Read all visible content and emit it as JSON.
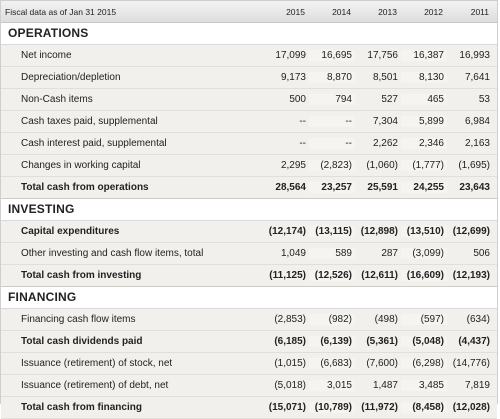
{
  "header": {
    "label": "Fiscal data as of Jan 31 2015",
    "years": [
      "2015",
      "2014",
      "2013",
      "2012",
      "2011"
    ]
  },
  "sections": {
    "operations": {
      "title": "OPERATIONS",
      "rows": [
        {
          "label": "Net income",
          "values": [
            "17,099",
            "16,695",
            "17,756",
            "16,387",
            "16,993"
          ]
        },
        {
          "label": "Depreciation/depletion",
          "values": [
            "9,173",
            "8,870",
            "8,501",
            "8,130",
            "7,641"
          ]
        },
        {
          "label": "Non-Cash items",
          "values": [
            "500",
            "794",
            "527",
            "465",
            "53"
          ]
        },
        {
          "label": "Cash taxes paid, supplemental",
          "values": [
            "--",
            "--",
            "7,304",
            "5,899",
            "6,984"
          ]
        },
        {
          "label": "Cash interest paid, supplemental",
          "values": [
            "--",
            "--",
            "2,262",
            "2,346",
            "2,163"
          ]
        },
        {
          "label": "Changes in working capital",
          "values": [
            "2,295",
            "(2,823)",
            "(1,060)",
            "(1,777)",
            "(1,695)"
          ]
        },
        {
          "label": "Total cash from operations",
          "values": [
            "28,564",
            "23,257",
            "25,591",
            "24,255",
            "23,643"
          ]
        }
      ]
    },
    "investing": {
      "title": "INVESTING",
      "rows": [
        {
          "label": "Capital expenditures",
          "values": [
            "(12,174)",
            "(13,115)",
            "(12,898)",
            "(13,510)",
            "(12,699)"
          ]
        },
        {
          "label": "Other investing and cash flow items, total",
          "values": [
            "1,049",
            "589",
            "287",
            "(3,099)",
            "506"
          ]
        },
        {
          "label": "Total cash from investing",
          "values": [
            "(11,125)",
            "(12,526)",
            "(12,611)",
            "(16,609)",
            "(12,193)"
          ]
        }
      ]
    },
    "financing": {
      "title": "FINANCING",
      "rows": [
        {
          "label": "Financing cash flow items",
          "values": [
            "(2,853)",
            "(982)",
            "(498)",
            "(597)",
            "(634)"
          ]
        },
        {
          "label": "Total cash dividends paid",
          "values": [
            "(6,185)",
            "(6,139)",
            "(5,361)",
            "(5,048)",
            "(4,437)"
          ]
        },
        {
          "label": "Issuance (retirement) of stock, net",
          "values": [
            "(1,015)",
            "(6,683)",
            "(7,600)",
            "(6,298)",
            "(14,776)"
          ]
        },
        {
          "label": "Issuance (retirement) of debt, net",
          "values": [
            "(5,018)",
            "3,015",
            "1,487",
            "3,485",
            "7,819"
          ]
        },
        {
          "label": "Total cash from financing",
          "values": [
            "(15,071)",
            "(10,789)",
            "(11,972)",
            "(8,458)",
            "(12,028)"
          ]
        }
      ]
    }
  }
}
